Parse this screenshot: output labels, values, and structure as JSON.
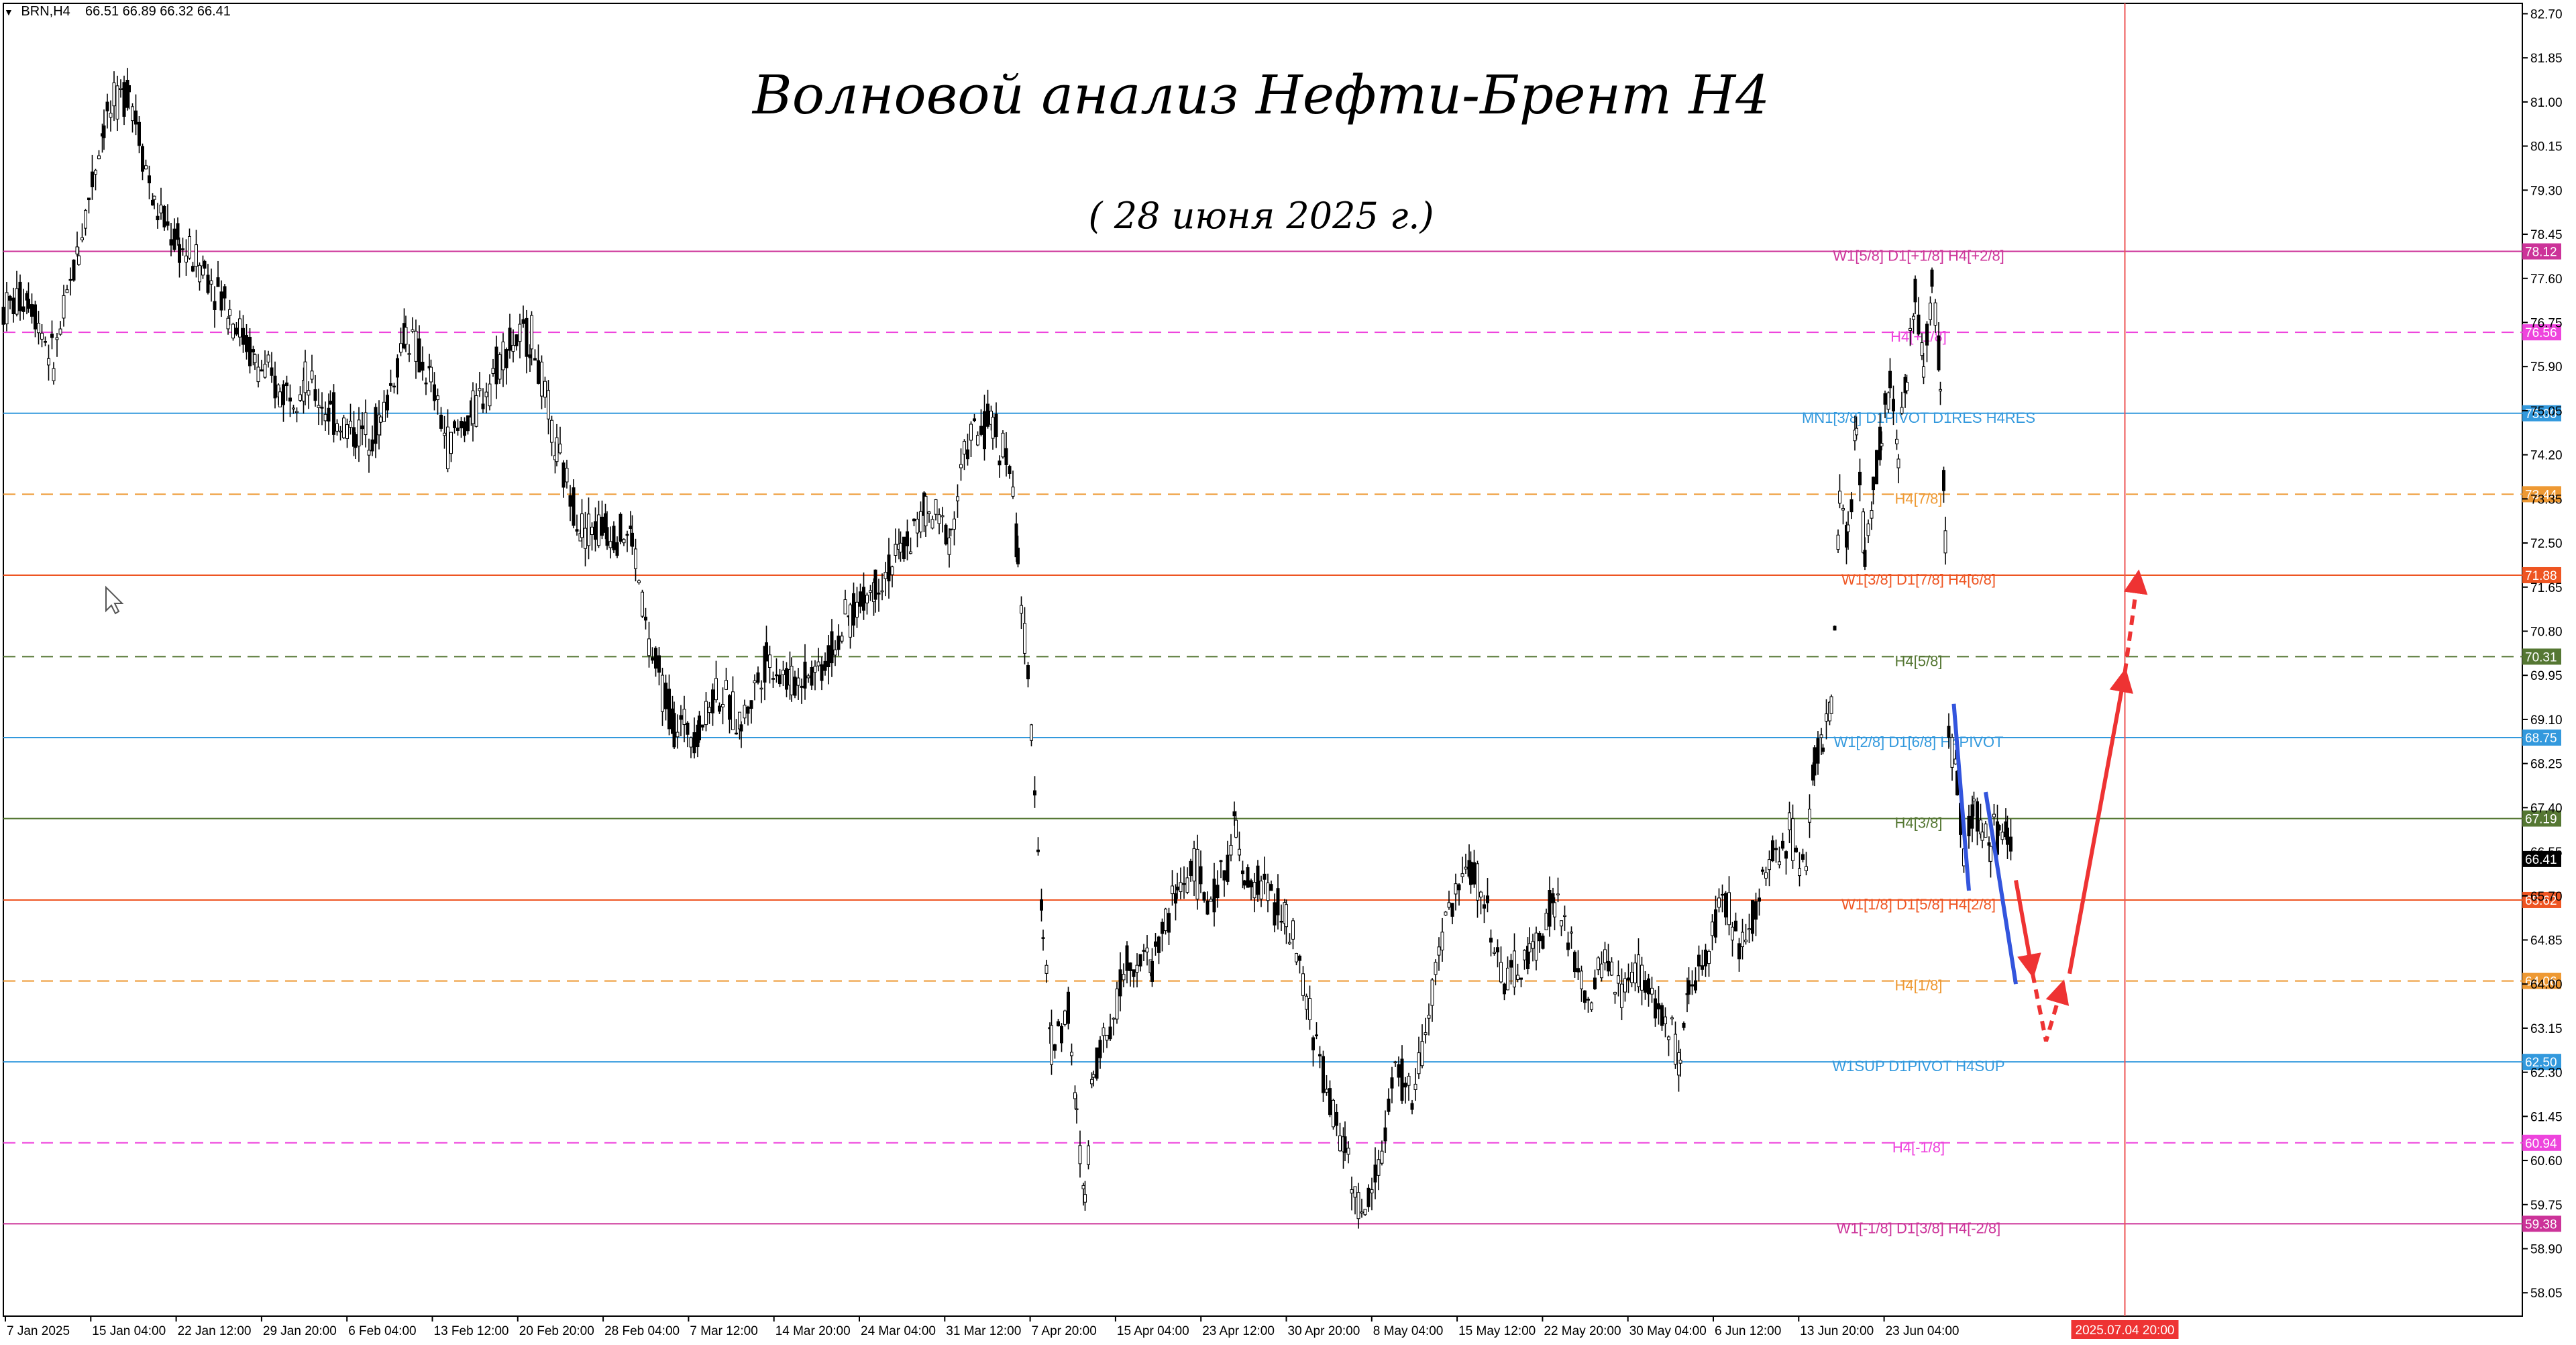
{
  "symbol_bar": {
    "symbol": "BRN,H4",
    "ohlc": "66.51 66.89 66.32 66.41"
  },
  "overlay": {
    "title": "Волновой анализ Нефти-Брент H4",
    "subtitle": "( 28 июня 2025 г.)"
  },
  "colors": {
    "background": "#ffffff",
    "axis": "#000000",
    "candles": "#000000",
    "wave_blue": "#3355dd",
    "forecast_red": "#ee3333",
    "marker_line": "#ee5555"
  },
  "chart_data": {
    "type": "candlestick",
    "price_axis": {
      "min": 57.6,
      "max": 82.9,
      "ticks": [
        "82.70",
        "81.85",
        "81.00",
        "80.15",
        "79.30",
        "78.45",
        "77.60",
        "76.75",
        "75.90",
        "75.05",
        "74.20",
        "73.35",
        "72.50",
        "71.65",
        "70.80",
        "69.95",
        "69.10",
        "68.25",
        "67.40",
        "66.55",
        "65.70",
        "64.85",
        "64.00",
        "63.15",
        "62.30",
        "61.45",
        "60.60",
        "59.75",
        "58.90",
        "58.05"
      ]
    },
    "time_axis": {
      "labels": [
        "7 Jan 2025",
        "15 Jan 04:00",
        "22 Jan 12:00",
        "29 Jan 20:00",
        "6 Feb 04:00",
        "13 Feb 12:00",
        "20 Feb 20:00",
        "28 Feb 04:00",
        "7 Mar 12:00",
        "14 Mar 20:00",
        "24 Mar 04:00",
        "31 Mar 12:00",
        "7 Apr 20:00",
        "15 Apr 04:00",
        "23 Apr 12:00",
        "30 Apr 20:00",
        "8 May 04:00",
        "15 May 12:00",
        "22 May 20:00",
        "30 May 04:00",
        "6 Jun 12:00",
        "13 Jun 20:00",
        "23 Jun 04:00"
      ],
      "highlight_label": "2025.07.04 20:00"
    },
    "current_price": "66.41",
    "price_series": [
      [
        0,
        77.0
      ],
      [
        15,
        77.3
      ],
      [
        30,
        76.0
      ],
      [
        45,
        78.2
      ],
      [
        60,
        80.6
      ],
      [
        75,
        81.3
      ],
      [
        90,
        79.0
      ],
      [
        105,
        78.2
      ],
      [
        120,
        77.8
      ],
      [
        135,
        77.0
      ],
      [
        150,
        76.0
      ],
      [
        165,
        75.4
      ],
      [
        180,
        75.6
      ],
      [
        195,
        75.0
      ],
      [
        210,
        74.6
      ],
      [
        225,
        74.8
      ],
      [
        240,
        76.6
      ],
      [
        255,
        75.6
      ],
      [
        265,
        74.4
      ],
      [
        280,
        75.0
      ],
      [
        300,
        76.3
      ],
      [
        315,
        76.5
      ],
      [
        330,
        74.2
      ],
      [
        345,
        72.8
      ],
      [
        360,
        72.8
      ],
      [
        375,
        72.6
      ],
      [
        385,
        70.5
      ],
      [
        400,
        69.0
      ],
      [
        415,
        68.9
      ],
      [
        425,
        69.7
      ],
      [
        440,
        69.0
      ],
      [
        455,
        70.3
      ],
      [
        470,
        69.8
      ],
      [
        490,
        70.2
      ],
      [
        505,
        71.1
      ],
      [
        520,
        71.7
      ],
      [
        535,
        72.3
      ],
      [
        550,
        73.1
      ],
      [
        565,
        72.7
      ],
      [
        575,
        74.5
      ],
      [
        590,
        74.8
      ],
      [
        600,
        74.0
      ],
      [
        605,
        72.2
      ],
      [
        615,
        68.0
      ],
      [
        620,
        65.0
      ],
      [
        625,
        62.8
      ],
      [
        635,
        63.5
      ],
      [
        640,
        61.3
      ],
      [
        645,
        59.8
      ],
      [
        650,
        62.5
      ],
      [
        660,
        63.2
      ],
      [
        670,
        64.5
      ],
      [
        685,
        64.4
      ],
      [
        700,
        65.8
      ],
      [
        710,
        66.3
      ],
      [
        720,
        65.4
      ],
      [
        735,
        67.0
      ],
      [
        740,
        65.8
      ],
      [
        750,
        66.0
      ],
      [
        765,
        65.2
      ],
      [
        775,
        64.0
      ],
      [
        785,
        62.5
      ],
      [
        795,
        61.2
      ],
      [
        800,
        61.0
      ],
      [
        810,
        59.4
      ],
      [
        820,
        60.5
      ],
      [
        830,
        62.3
      ],
      [
        840,
        61.8
      ],
      [
        850,
        63.4
      ],
      [
        860,
        65.3
      ],
      [
        875,
        66.3
      ],
      [
        885,
        65.4
      ],
      [
        895,
        64.0
      ],
      [
        910,
        64.5
      ],
      [
        925,
        65.6
      ],
      [
        935,
        64.7
      ],
      [
        945,
        63.5
      ],
      [
        955,
        64.5
      ],
      [
        965,
        63.8
      ],
      [
        975,
        64.3
      ],
      [
        985,
        63.6
      ],
      [
        995,
        63.0
      ],
      [
        1000,
        62.3
      ],
      [
        1005,
        63.8
      ],
      [
        1015,
        64.6
      ],
      [
        1025,
        65.7
      ],
      [
        1035,
        64.8
      ],
      [
        1045,
        65.5
      ],
      [
        1055,
        66.5
      ],
      [
        1065,
        66.9
      ],
      [
        1075,
        66.4
      ],
      [
        1080,
        68.3
      ],
      [
        1085,
        68.8
      ],
      [
        1090,
        69.3
      ],
      [
        1095,
        73.2
      ],
      [
        1100,
        72.4
      ],
      [
        1105,
        74.8
      ],
      [
        1110,
        72.2
      ],
      [
        1115,
        73.6
      ],
      [
        1120,
        74.7
      ],
      [
        1125,
        75.5
      ],
      [
        1130,
        74.1
      ],
      [
        1135,
        75.7
      ],
      [
        1140,
        77.4
      ],
      [
        1145,
        75.8
      ],
      [
        1150,
        77.6
      ],
      [
        1155,
        75.8
      ],
      [
        1158,
        72.5
      ],
      [
        1160,
        69.0
      ],
      [
        1165,
        67.8
      ],
      [
        1170,
        66.4
      ],
      [
        1175,
        67.4
      ],
      [
        1180,
        67.0
      ],
      [
        1185,
        66.6
      ],
      [
        1190,
        67.0
      ],
      [
        1195,
        66.9
      ],
      [
        1199,
        66.4
      ]
    ],
    "levels": [
      {
        "price": 78.12,
        "label": "W1[5/8] D1[+1/8] H4[+2/8]",
        "value": "78.12",
        "color": "#cc3399",
        "dash": false
      },
      {
        "price": 76.56,
        "label": "H4[+1/8]",
        "value": "76.56",
        "color": "#ee44dd",
        "dash": true
      },
      {
        "price": 75.0,
        "label": "MN1[3/8] D1PIVOT D1RES H4RES",
        "value": "75.00",
        "color": "#3399dd",
        "dash": false
      },
      {
        "price": 73.44,
        "label": "H4[7/8]",
        "value": "73.44",
        "color": "#ee9933",
        "dash": true
      },
      {
        "price": 71.88,
        "label": "W1[3/8] D1[7/8] H4[6/8]",
        "value": "71.88",
        "color": "#ee5522",
        "dash": false
      },
      {
        "price": 70.31,
        "label": "H4[5/8]",
        "value": "70.31",
        "color": "#557733",
        "dash": true
      },
      {
        "price": 68.75,
        "label": "W1[2/8] D1[6/8] H4PIVOT",
        "value": "68.75",
        "color": "#3399dd",
        "dash": false
      },
      {
        "price": 67.19,
        "label": "H4[3/8]",
        "value": "67.19",
        "color": "#557733",
        "dash": false
      },
      {
        "price": 65.62,
        "label": "W1[1/8] D1[5/8] H4[2/8]",
        "value": "65.62",
        "color": "#ee5522",
        "dash": false
      },
      {
        "price": 64.06,
        "label": "H4[1/8]",
        "value": "64.06",
        "color": "#ee9933",
        "dash": true
      },
      {
        "price": 62.5,
        "label": "W1SUP D1PIVOT H4SUP",
        "value": "62.50",
        "color": "#3399dd",
        "dash": false
      },
      {
        "price": 60.94,
        "label": "H4[-1/8]",
        "value": "60.94",
        "color": "#ee44dd",
        "dash": true
      },
      {
        "price": 59.38,
        "label": "W1[-1/8] D1[3/8] H4[-2/8]",
        "value": "59.38",
        "color": "#cc3399",
        "dash": false
      }
    ],
    "wave_markup": {
      "blue_lines": [
        [
          [
            1163,
            69.4
          ],
          [
            1172,
            65.8
          ]
        ],
        [
          [
            1182,
            67.7
          ],
          [
            1200,
            64.0
          ]
        ]
      ],
      "red_solid": [
        [
          [
            1200,
            66.0
          ],
          [
            1210,
            64.2
          ]
        ],
        [
          [
            1232,
            64.2
          ],
          [
            1265,
            70.0
          ]
        ]
      ],
      "red_dashed": [
        [
          [
            1210,
            64.2
          ],
          [
            1218,
            62.9
          ],
          [
            1228,
            64.0
          ]
        ],
        [
          [
            1265,
            70.0
          ],
          [
            1273,
            71.9
          ]
        ]
      ]
    }
  }
}
